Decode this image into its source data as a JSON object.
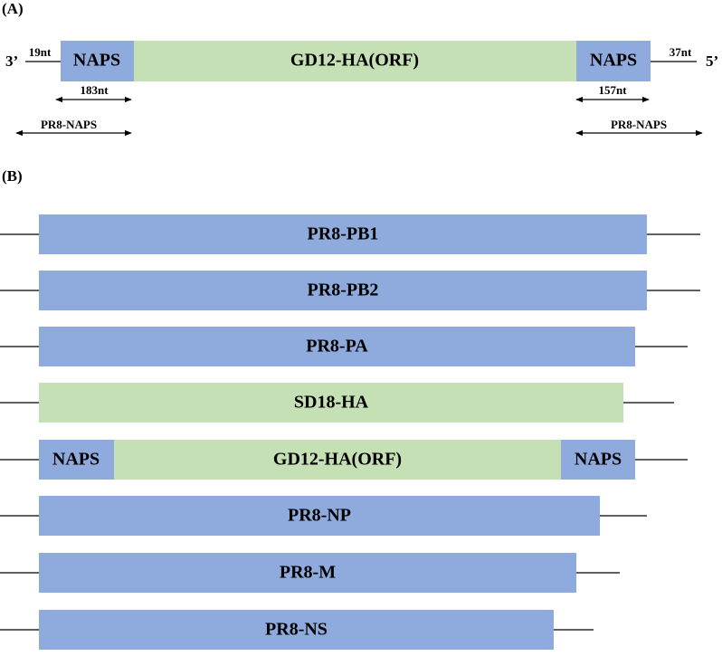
{
  "panel_a": {
    "label": "(A)",
    "left_end": "3’",
    "right_end": "5’",
    "left_flank": "19nt",
    "right_flank": "37nt",
    "left_box": "NAPS",
    "center_box": "GD12-HA(ORF)",
    "right_box": "NAPS",
    "left_span": "183nt",
    "right_span": "157nt",
    "left_primer": "PR8-NAPS",
    "right_primer": "PR8-NAPS"
  },
  "panel_b": {
    "label": "(B)",
    "segments": [
      "PR8-PB1",
      "PR8-PB2",
      "PR8-PA",
      "SD18-HA",
      "GD12-HA(ORF)",
      "PR8-NP",
      "PR8-M",
      "PR8-NS"
    ],
    "flank_boxes": [
      "NAPS",
      "NAPS"
    ]
  }
}
